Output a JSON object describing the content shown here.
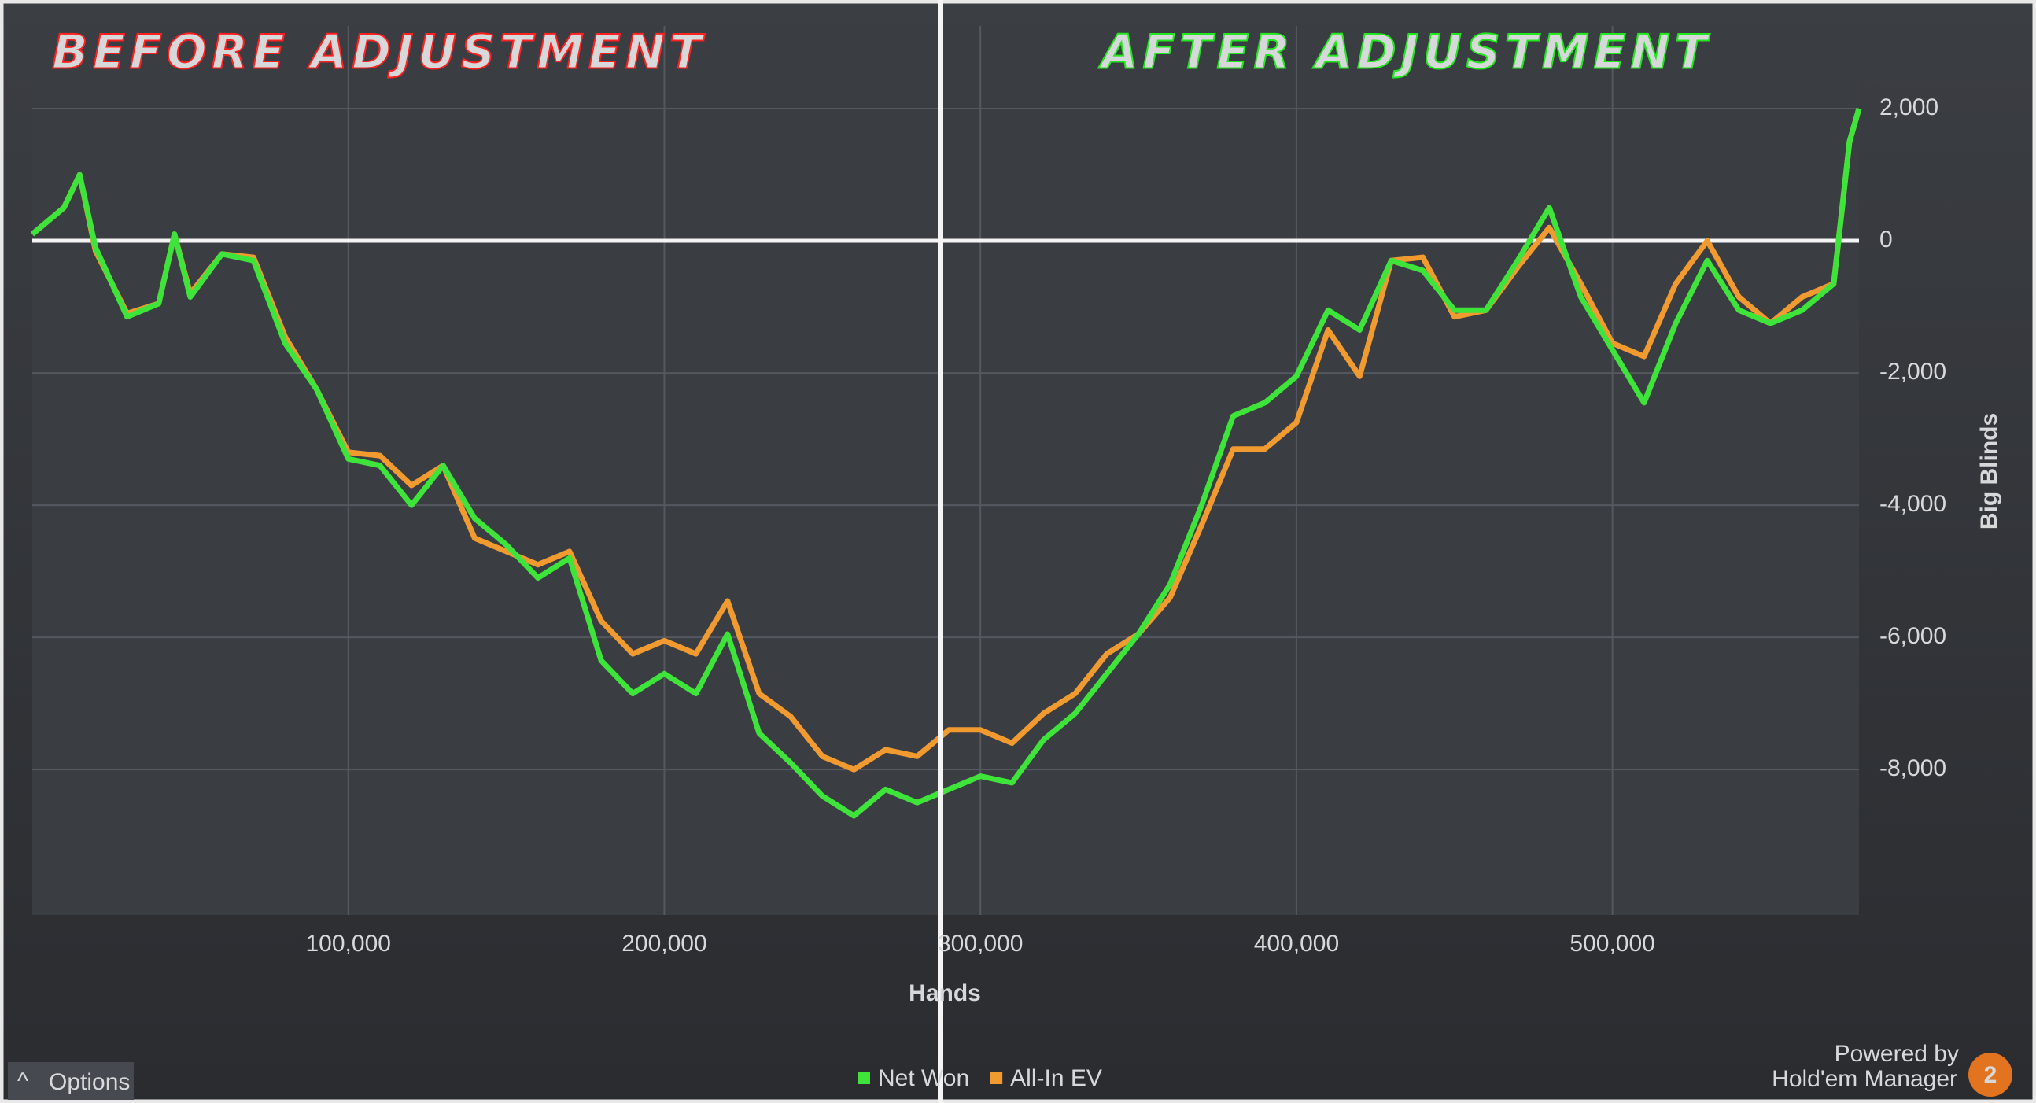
{
  "chart_data": {
    "type": "line",
    "annotations": [
      {
        "text": "BEFORE ADJUSTMENT",
        "color": "#ff2020"
      },
      {
        "text": "AFTER ADJUSTMENT",
        "color": "#22e61e"
      }
    ],
    "x_label": "Hands",
    "y_label": "Big Blinds",
    "x": [
      0,
      10000,
      15000,
      20000,
      30000,
      40000,
      45000,
      50000,
      60000,
      70000,
      80000,
      90000,
      100000,
      110000,
      120000,
      130000,
      140000,
      150000,
      160000,
      170000,
      180000,
      190000,
      200000,
      210000,
      220000,
      230000,
      240000,
      250000,
      260000,
      270000,
      280000,
      290000,
      300000,
      310000,
      320000,
      330000,
      340000,
      350000,
      360000,
      370000,
      380000,
      390000,
      400000,
      410000,
      420000,
      430000,
      440000,
      450000,
      460000,
      470000,
      480000,
      490000,
      500000,
      510000,
      520000,
      530000,
      540000,
      550000,
      560000,
      570000,
      575000,
      578000
    ],
    "series": [
      {
        "name": "Net Won",
        "color": "#3ee43a",
        "values": [
          100,
          500,
          1000,
          -100,
          -1150,
          -950,
          100,
          -850,
          -200,
          -300,
          -1550,
          -2250,
          -3300,
          -3400,
          -4000,
          -3400,
          -4200,
          -4600,
          -5100,
          -4800,
          -6350,
          -6850,
          -6550,
          -6850,
          -5950,
          -7450,
          -7900,
          -8400,
          -8700,
          -8300,
          -8500,
          -8300,
          -8100,
          -8200,
          -7550,
          -7150,
          -6550,
          -5950,
          -5200,
          -4000,
          -2650,
          -2450,
          -2050,
          -1050,
          -1350,
          -300,
          -450,
          -1050,
          -1050,
          -300,
          500,
          -850,
          -1650,
          -2450,
          -1250,
          -300,
          -1050,
          -1250,
          -1050,
          -650,
          1500,
          2000
        ]
      },
      {
        "name": "All-In EV",
        "color": "#f09a30",
        "values": [
          100,
          500,
          1000,
          -150,
          -1100,
          -950,
          100,
          -800,
          -200,
          -250,
          -1450,
          -2250,
          -3200,
          -3250,
          -3700,
          -3400,
          -4500,
          -4700,
          -4900,
          -4700,
          -5750,
          -6250,
          -6050,
          -6250,
          -5450,
          -6850,
          -7200,
          -7800,
          -8000,
          -7700,
          -7800,
          -7400,
          -7400,
          -7600,
          -7150,
          -6850,
          -6250,
          -5950,
          -5400,
          -4300,
          -3150,
          -3150,
          -2750,
          -1350,
          -2050,
          -300,
          -250,
          -1150,
          -1050,
          -400,
          200,
          -650,
          -1550,
          -1750,
          -650,
          0,
          -850,
          -1250,
          -850,
          -650,
          1500,
          2000
        ]
      }
    ],
    "xlim": [
      0,
      578000
    ],
    "ylim": [
      -10200,
      3250
    ],
    "xticks": [
      {
        "value": 100000,
        "label": "100,000"
      },
      {
        "value": 200000,
        "label": "200,000"
      },
      {
        "value": 300000,
        "label": "300,000"
      },
      {
        "value": 400000,
        "label": "400,000"
      },
      {
        "value": 500000,
        "label": "500,000"
      }
    ],
    "yticks": [
      {
        "value": 2000,
        "label": "2,000"
      },
      0,
      {
        "value": -2000,
        "label": "-2,000"
      },
      {
        "value": -4000,
        "label": "-4,000"
      },
      {
        "value": -6000,
        "label": "-6,000"
      },
      {
        "value": -8000,
        "label": "-8,000"
      }
    ],
    "grid": true,
    "legend": "bottom"
  },
  "ui": {
    "options": "Options",
    "powered_by": "Powered by",
    "brand": "Hold'em Manager",
    "badge": "2"
  }
}
